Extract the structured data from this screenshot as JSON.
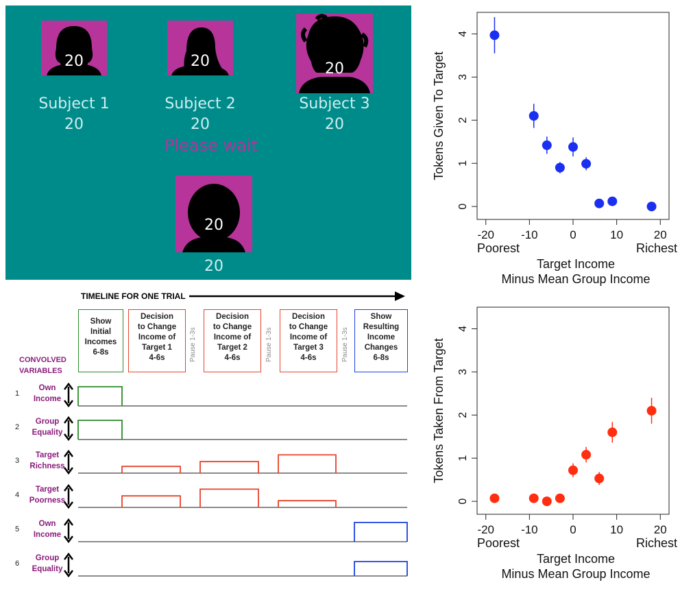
{
  "game_screen": {
    "subjects": [
      {
        "label": "Subject 1",
        "tokens": "20",
        "avatar_tokens": "20",
        "avatar": "female-silhouette-icon"
      },
      {
        "label": "Subject 2",
        "tokens": "20",
        "avatar_tokens": "20",
        "avatar": "female-silhouette-icon"
      },
      {
        "label": "Subject 3",
        "tokens": "20",
        "avatar_tokens": "20",
        "avatar": "male-curly-silhouette-icon"
      }
    ],
    "status": "Please wait",
    "self": {
      "tokens": "20",
      "avatar_tokens": "20",
      "avatar": "round-head-silhouette-icon"
    },
    "colors": {
      "background": "#008b8b",
      "avatar_bg": "#b7359b",
      "status": "#b0359b"
    }
  },
  "timeline": {
    "title": "TIMELINE FOR ONE TRIAL",
    "phases": [
      {
        "lines": [
          "Show",
          "Initial",
          "Incomes",
          "6-8s"
        ],
        "color": "#2a8a2a"
      },
      {
        "lines": [
          "Decision",
          "to Change",
          "Income of",
          "Target 1",
          "4-6s"
        ],
        "color": "#e8402a"
      },
      {
        "lines": [
          "Decision",
          "to Change",
          "Income of",
          "Target 2",
          "4-6s"
        ],
        "color": "#e8402a"
      },
      {
        "lines": [
          "Decision",
          "to Change",
          "Income of",
          "Target 3",
          "4-6s"
        ],
        "color": "#e8402a"
      },
      {
        "lines": [
          "Show",
          "Resulting",
          "Income",
          "Changes",
          "6-8s"
        ],
        "color": "#1a3fe0"
      }
    ],
    "pause_label": "Pause 1-3s",
    "convolved_title": [
      "CONVOLVED",
      "VARIABLES"
    ],
    "variables": [
      {
        "num": "1",
        "lines": [
          "Own",
          "Income"
        ],
        "color": "#2a8a2a",
        "levels": [
          1,
          0,
          0,
          0,
          0
        ]
      },
      {
        "num": "2",
        "lines": [
          "Group",
          "Equality"
        ],
        "color": "#2a8a2a",
        "levels": [
          1,
          0,
          0,
          0,
          0
        ]
      },
      {
        "num": "3",
        "lines": [
          "Target",
          "Richness"
        ],
        "color": "#e8402a",
        "levels": [
          0,
          0.35,
          0.6,
          0.95,
          0
        ]
      },
      {
        "num": "4",
        "lines": [
          "Target",
          "Poorness"
        ],
        "color": "#e8402a",
        "levels": [
          0,
          0.6,
          0.95,
          0.35,
          0
        ]
      },
      {
        "num": "5",
        "lines": [
          "Own",
          "Income"
        ],
        "color": "#1a3fe0",
        "levels": [
          0,
          0,
          0,
          0,
          1
        ]
      },
      {
        "num": "6",
        "lines": [
          "Group",
          "Equality"
        ],
        "color": "#1a3fe0",
        "levels": [
          0,
          0,
          0,
          0,
          0.75
        ]
      }
    ]
  },
  "chart_data": [
    {
      "type": "scatter",
      "color": "#1a2ff0",
      "ylabel": "Tokens Given To Target",
      "xlabel": [
        "Target Income",
        "Minus Mean Group Income"
      ],
      "xlim": [
        -22,
        22
      ],
      "ylim": [
        -0.3,
        4.5
      ],
      "x_ticks": [
        "-20",
        "-10",
        "0",
        "10",
        "20"
      ],
      "y_ticks": [
        "0",
        "1",
        "2",
        "3",
        "4"
      ],
      "x_end_labels": [
        "Poorest",
        "Richest"
      ],
      "points": [
        {
          "x": -18,
          "y": 3.97,
          "err": 0.42
        },
        {
          "x": -9,
          "y": 2.1,
          "err": 0.28
        },
        {
          "x": -6,
          "y": 1.42,
          "err": 0.2
        },
        {
          "x": -3,
          "y": 0.9,
          "err": 0.13
        },
        {
          "x": 0,
          "y": 1.38,
          "err": 0.22
        },
        {
          "x": 3,
          "y": 0.99,
          "err": 0.15
        },
        {
          "x": 6,
          "y": 0.07,
          "err": 0.05
        },
        {
          "x": 9,
          "y": 0.12,
          "err": 0.06
        },
        {
          "x": 18,
          "y": 0.0,
          "err": 0.02
        }
      ]
    },
    {
      "type": "scatter",
      "color": "#ff2e10",
      "ylabel": "Tokens Taken From Target",
      "xlabel": [
        "Target Income",
        "Minus Mean Group Income"
      ],
      "xlim": [
        -22,
        22
      ],
      "ylim": [
        -0.3,
        4.5
      ],
      "x_ticks": [
        "-20",
        "-10",
        "0",
        "10",
        "20"
      ],
      "y_ticks": [
        "0",
        "1",
        "2",
        "3",
        "4"
      ],
      "x_end_labels": [
        "Poorest",
        "Richest"
      ],
      "points": [
        {
          "x": -18,
          "y": 0.07,
          "err": 0.03
        },
        {
          "x": -9,
          "y": 0.07,
          "err": 0.03
        },
        {
          "x": -6,
          "y": 0.0,
          "err": 0.02
        },
        {
          "x": -3,
          "y": 0.07,
          "err": 0.03
        },
        {
          "x": 0,
          "y": 0.72,
          "err": 0.16
        },
        {
          "x": 3,
          "y": 1.08,
          "err": 0.18
        },
        {
          "x": 6,
          "y": 0.53,
          "err": 0.15
        },
        {
          "x": 9,
          "y": 1.6,
          "err": 0.24
        },
        {
          "x": 18,
          "y": 2.1,
          "err": 0.3
        }
      ]
    }
  ]
}
